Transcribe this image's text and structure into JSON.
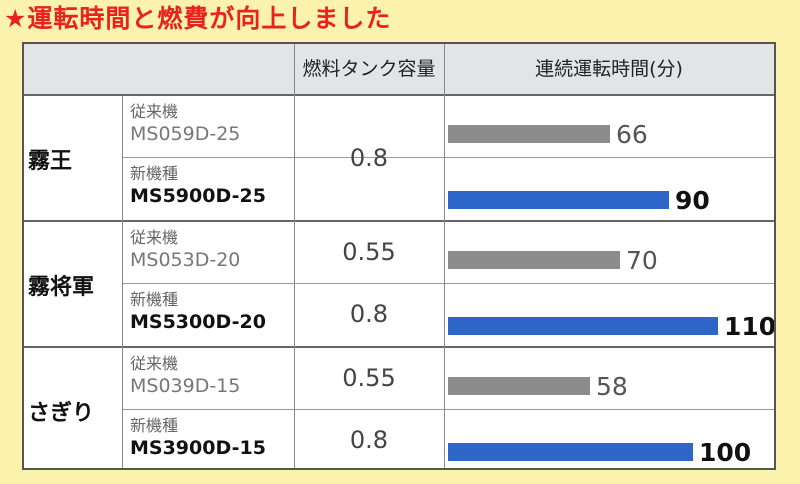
{
  "title": "★運転時間と燃費が向上しました",
  "header": {
    "tank_label": "燃料タンク容量(L)",
    "runtime_label": "連続運転時間(分)"
  },
  "labels": {
    "old": "従来機",
    "new": "新機種"
  },
  "colors": {
    "old_bar": "#8c8c8c",
    "new_bar": "#2e65c8",
    "title": "#e8231e",
    "background": "#fbf3ad"
  },
  "chart_data": {
    "type": "bar",
    "orientation": "horizontal",
    "xlim": [
      0,
      110
    ],
    "groups": [
      {
        "series_name": "霧王",
        "rows": [
          {
            "kind": "従来機",
            "model": "MS059D-25",
            "tank": "0.8",
            "runtime": 66
          },
          {
            "kind": "新機種",
            "model": "MS5900D-25",
            "runtime": 90
          }
        ]
      },
      {
        "series_name": "霧将軍",
        "rows": [
          {
            "kind": "従来機",
            "model": "MS053D-20",
            "tank": "0.55",
            "runtime": 70
          },
          {
            "kind": "新機種",
            "model": "MS5300D-20",
            "tank": "0.8",
            "runtime": 110
          }
        ]
      },
      {
        "series_name": "さぎり",
        "rows": [
          {
            "kind": "従来機",
            "model": "MS039D-15",
            "tank": "0.55",
            "runtime": 58
          },
          {
            "kind": "新機種",
            "model": "MS3900D-15",
            "tank": "0.8",
            "runtime": 100
          }
        ]
      }
    ]
  }
}
